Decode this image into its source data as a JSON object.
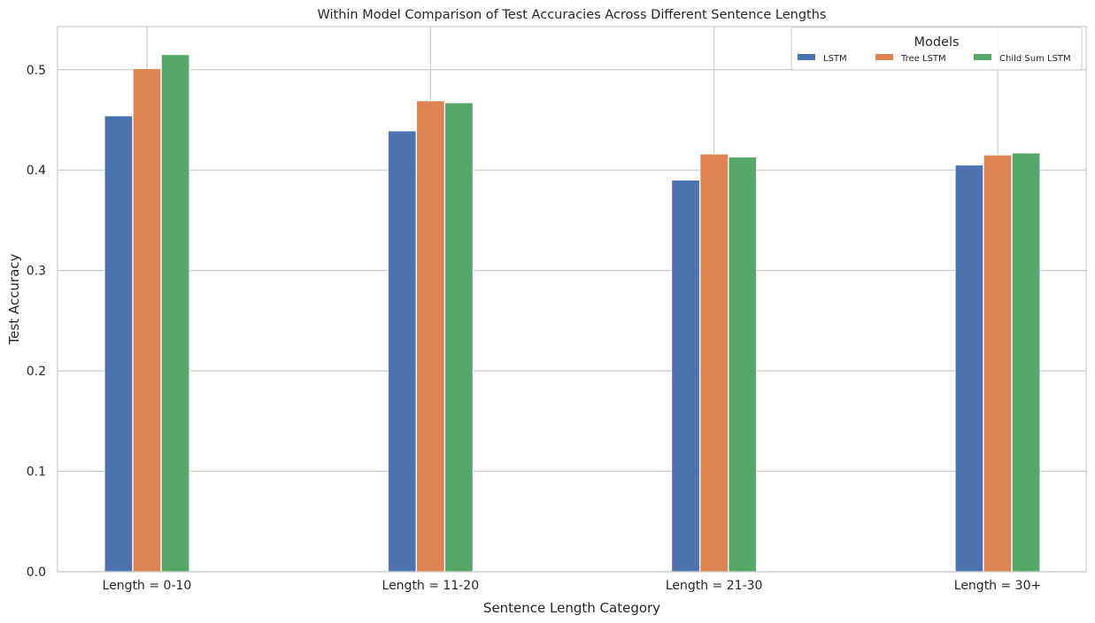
{
  "chart_data": {
    "type": "bar",
    "title": "Within Model Comparison of Test Accuracies Across Different Sentence Lengths",
    "xlabel": "Sentence Length Category",
    "ylabel": "Test Accuracy",
    "categories": [
      "Length = 0-10",
      "Length = 11-20",
      "Length = 21-30",
      "Length = 30+"
    ],
    "series": [
      {
        "name": "LSTM",
        "color": "#4c72b0",
        "values": [
          0.454,
          0.439,
          0.39,
          0.405
        ]
      },
      {
        "name": "Tree LSTM",
        "color": "#dd8452",
        "values": [
          0.501,
          0.469,
          0.416,
          0.415
        ]
      },
      {
        "name": "Child Sum LSTM",
        "color": "#55a868",
        "values": [
          0.515,
          0.467,
          0.413,
          0.417
        ]
      }
    ],
    "ylim": [
      0,
      0.543
    ],
    "yticks": [
      "0.0",
      "0.1",
      "0.2",
      "0.3",
      "0.4",
      "0.5"
    ],
    "ytick_values": [
      0,
      0.1,
      0.2,
      0.3,
      0.4,
      0.5
    ],
    "grid": true,
    "legend": {
      "title": "Models",
      "placement": "top-right"
    }
  }
}
